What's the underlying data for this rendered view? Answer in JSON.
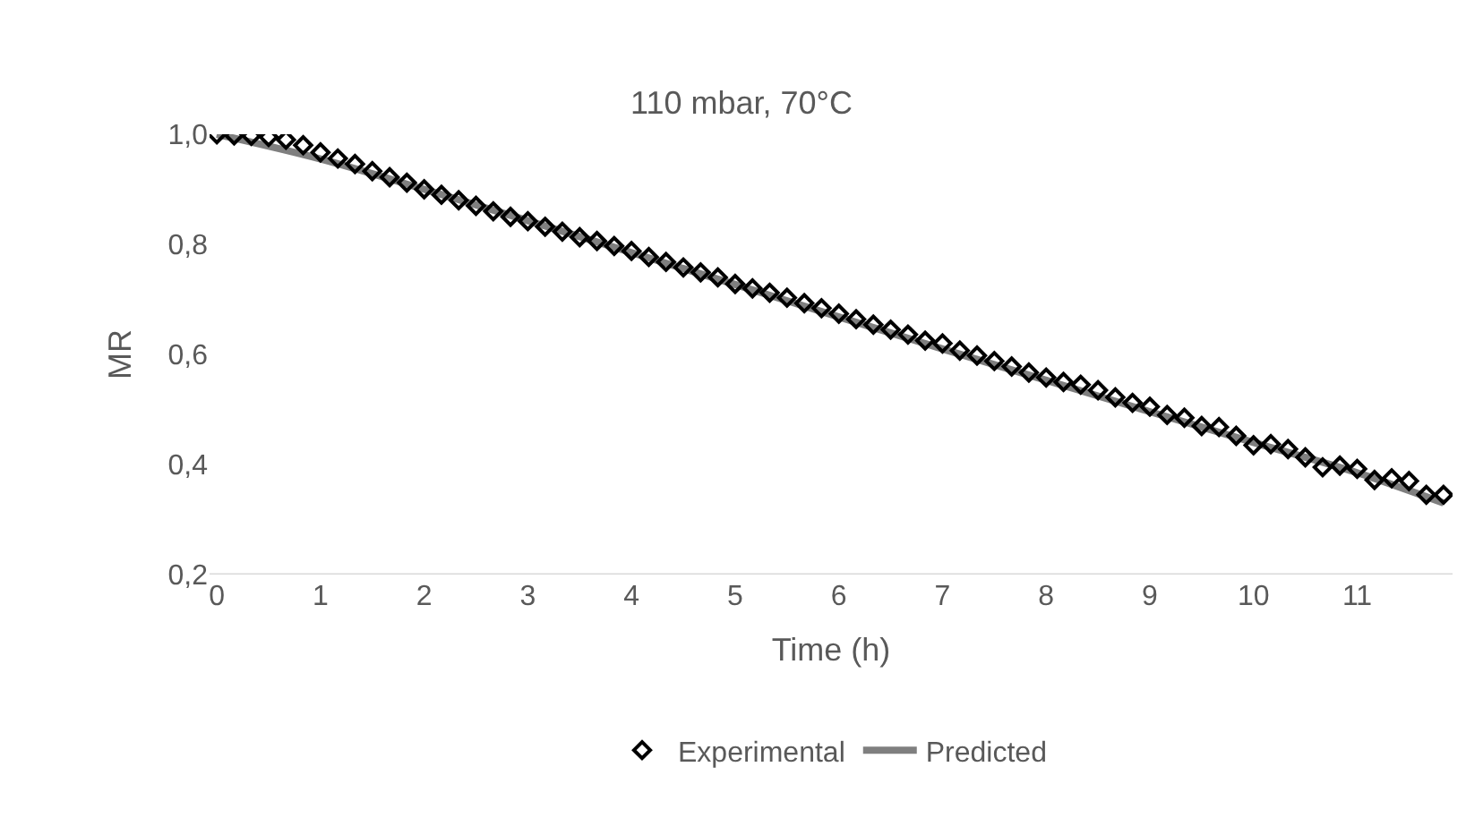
{
  "chart_data": {
    "type": "scatter",
    "title": "110 mbar, 70°C",
    "xlabel": "Time (h)",
    "ylabel": "MR",
    "xlim": [
      -0.07,
      11.92
    ],
    "xticks": [
      0,
      1,
      2,
      3,
      4,
      5,
      6,
      7,
      8,
      9,
      10,
      11
    ],
    "ylim": [
      0.2,
      1.0
    ],
    "yticks": [
      {
        "value": 0.2,
        "label": "0,2"
      },
      {
        "value": 0.4,
        "label": "0,4"
      },
      {
        "value": 0.6,
        "label": "0,6"
      },
      {
        "value": 0.8,
        "label": "0,8"
      },
      {
        "value": 1.0,
        "label": "1,0"
      }
    ],
    "grid": false,
    "legend": "bottom",
    "series": [
      {
        "name": "Experimental",
        "marker": "diamond",
        "color": "#000000",
        "x": [
          0,
          0.167,
          0.333,
          0.5,
          0.667,
          0.833,
          1,
          1.167,
          1.333,
          1.5,
          1.667,
          1.833,
          2,
          2.167,
          2.333,
          2.5,
          2.667,
          2.833,
          3,
          3.167,
          3.333,
          3.5,
          3.667,
          3.833,
          4,
          4.167,
          4.333,
          4.5,
          4.667,
          4.833,
          5,
          5.167,
          5.333,
          5.5,
          5.667,
          5.833,
          6,
          6.167,
          6.333,
          6.5,
          6.667,
          6.833,
          7,
          7.167,
          7.333,
          7.5,
          7.667,
          7.833,
          8,
          8.167,
          8.333,
          8.5,
          8.667,
          8.833,
          9,
          9.167,
          9.333,
          9.5,
          9.667,
          9.833,
          10,
          10.167,
          10.333,
          10.5,
          10.667,
          10.833,
          11,
          11.167,
          11.333,
          11.5,
          11.667,
          11.833
        ],
        "values": [
          1.0,
          0.998,
          0.997,
          0.995,
          0.99,
          0.98,
          0.967,
          0.956,
          0.946,
          0.933,
          0.922,
          0.912,
          0.9,
          0.89,
          0.88,
          0.87,
          0.86,
          0.85,
          0.842,
          0.832,
          0.823,
          0.813,
          0.806,
          0.797,
          0.788,
          0.777,
          0.768,
          0.758,
          0.749,
          0.74,
          0.728,
          0.72,
          0.712,
          0.703,
          0.693,
          0.684,
          0.674,
          0.664,
          0.654,
          0.645,
          0.636,
          0.625,
          0.62,
          0.607,
          0.598,
          0.588,
          0.578,
          0.567,
          0.558,
          0.55,
          0.545,
          0.535,
          0.522,
          0.512,
          0.505,
          0.49,
          0.485,
          0.47,
          0.468,
          0.452,
          0.435,
          0.437,
          0.428,
          0.413,
          0.395,
          0.398,
          0.392,
          0.372,
          0.375,
          0.37,
          0.345,
          0.345
        ]
      },
      {
        "name": "Predicted",
        "type": "line",
        "line_style": "solid",
        "color": "#7f7f7f",
        "x": [
          0,
          1,
          2,
          3,
          4,
          5,
          6,
          7,
          8,
          9,
          10,
          11,
          11.833
        ],
        "values": [
          1.0,
          0.955,
          0.9,
          0.843,
          0.785,
          0.727,
          0.668,
          0.61,
          0.553,
          0.496,
          0.44,
          0.385,
          0.33
        ]
      }
    ]
  }
}
